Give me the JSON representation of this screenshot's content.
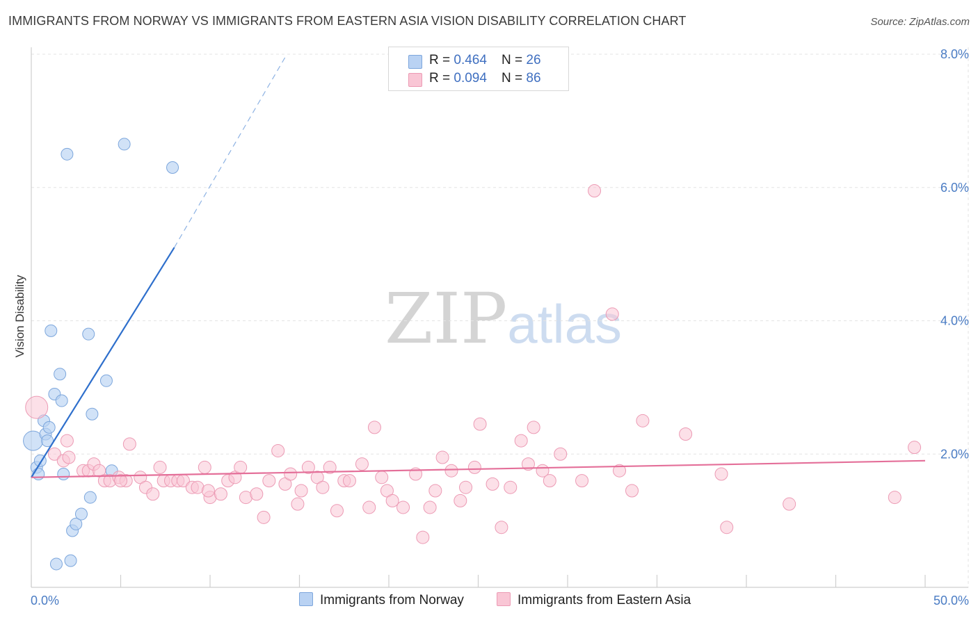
{
  "title": "IMMIGRANTS FROM NORWAY VS IMMIGRANTS FROM EASTERN ASIA VISION DISABILITY CORRELATION CHART",
  "source": "Source: ZipAtlas.com",
  "watermark": {
    "zip": "ZIP",
    "atlas": "atlas"
  },
  "legend": {
    "rows": [
      {
        "r_label": "R = ",
        "r_value": "0.464",
        "n_label": "N = ",
        "n_value": "26"
      },
      {
        "r_label": "R = ",
        "r_value": "0.094",
        "n_label": "N = ",
        "n_value": "86"
      }
    ]
  },
  "colors": {
    "norway_fill": "#b9d2f3",
    "norway_stroke": "#7ca6dc",
    "norway_line": "#2e6fcc",
    "easia_fill": "#f9c6d5",
    "easia_stroke": "#ec9ab4",
    "easia_line": "#e46f99",
    "grid": "#e3e3e3",
    "tick_text": "#4a7cc4"
  },
  "chart_data": {
    "type": "scatter",
    "title": "IMMIGRANTS FROM NORWAY VS IMMIGRANTS FROM EASTERN ASIA VISION DISABILITY CORRELATION CHART",
    "xlabel": "",
    "ylabel": "Vision Disability",
    "xlim": [
      0,
      50
    ],
    "ylim": [
      0,
      8.4
    ],
    "x_tick_labels": [
      {
        "value": 0,
        "label": "0.0%"
      },
      {
        "value": 50,
        "label": "50.0%"
      }
    ],
    "y_tick_labels": [
      {
        "value": 2,
        "label": "2.0%"
      },
      {
        "value": 4,
        "label": "4.0%"
      },
      {
        "value": 6,
        "label": "6.0%"
      },
      {
        "value": 8,
        "label": "8.0%"
      }
    ],
    "grid": "horizontal dashed",
    "legend_placement": "top-center",
    "series": [
      {
        "name": "Immigrants from Norway",
        "color": "#b9d2f3",
        "r": 0.464,
        "n": 26,
        "trend": {
          "x": [
            0,
            8
          ],
          "y": [
            1.65,
            5.1
          ],
          "dashed_extension": {
            "x": [
              8,
              14.3
            ],
            "y": [
              5.1,
              8.0
            ]
          }
        },
        "points": [
          [
            0.1,
            2.2
          ],
          [
            0.3,
            1.8
          ],
          [
            0.4,
            1.7
          ],
          [
            0.5,
            1.9
          ],
          [
            0.7,
            2.5
          ],
          [
            0.8,
            2.3
          ],
          [
            0.9,
            2.2
          ],
          [
            1.0,
            2.4
          ],
          [
            1.1,
            3.85
          ],
          [
            1.3,
            2.9
          ],
          [
            1.6,
            3.2
          ],
          [
            1.7,
            2.8
          ],
          [
            1.8,
            1.7
          ],
          [
            2.0,
            6.5
          ],
          [
            2.2,
            0.4
          ],
          [
            2.3,
            0.85
          ],
          [
            2.5,
            0.95
          ],
          [
            2.8,
            1.1
          ],
          [
            3.2,
            3.8
          ],
          [
            3.3,
            1.35
          ],
          [
            3.4,
            2.6
          ],
          [
            4.2,
            3.1
          ],
          [
            4.5,
            1.75
          ],
          [
            5.2,
            6.65
          ],
          [
            7.9,
            6.3
          ],
          [
            1.4,
            0.35
          ]
        ]
      },
      {
        "name": "Immigrants from Eastern Asia",
        "color": "#f9c6d5",
        "r": 0.094,
        "n": 86,
        "trend": {
          "x": [
            0,
            50
          ],
          "y": [
            1.65,
            1.9
          ]
        },
        "points": [
          [
            0.3,
            2.7
          ],
          [
            1.3,
            2.0
          ],
          [
            1.8,
            1.9
          ],
          [
            2.0,
            2.2
          ],
          [
            2.1,
            1.95
          ],
          [
            2.9,
            1.75
          ],
          [
            3.2,
            1.75
          ],
          [
            3.5,
            1.85
          ],
          [
            3.8,
            1.75
          ],
          [
            4.1,
            1.6
          ],
          [
            4.4,
            1.6
          ],
          [
            4.9,
            1.65
          ],
          [
            5.3,
            1.6
          ],
          [
            5.5,
            2.15
          ],
          [
            6.1,
            1.65
          ],
          [
            6.4,
            1.5
          ],
          [
            6.8,
            1.4
          ],
          [
            7.2,
            1.8
          ],
          [
            7.4,
            1.6
          ],
          [
            7.8,
            1.6
          ],
          [
            8.2,
            1.6
          ],
          [
            8.5,
            1.6
          ],
          [
            9.0,
            1.5
          ],
          [
            9.3,
            1.5
          ],
          [
            9.7,
            1.8
          ],
          [
            10.0,
            1.35
          ],
          [
            10.6,
            1.4
          ],
          [
            11.0,
            1.6
          ],
          [
            11.4,
            1.65
          ],
          [
            11.7,
            1.8
          ],
          [
            12.0,
            1.35
          ],
          [
            12.6,
            1.4
          ],
          [
            13.0,
            1.05
          ],
          [
            13.3,
            1.6
          ],
          [
            13.8,
            2.05
          ],
          [
            14.2,
            1.55
          ],
          [
            14.9,
            1.25
          ],
          [
            15.1,
            1.45
          ],
          [
            15.5,
            1.8
          ],
          [
            16.0,
            1.65
          ],
          [
            16.3,
            1.5
          ],
          [
            16.7,
            1.8
          ],
          [
            17.1,
            1.15
          ],
          [
            17.5,
            1.6
          ],
          [
            17.8,
            1.6
          ],
          [
            18.5,
            1.85
          ],
          [
            18.9,
            1.2
          ],
          [
            19.2,
            2.4
          ],
          [
            19.6,
            1.65
          ],
          [
            19.9,
            1.45
          ],
          [
            20.2,
            1.3
          ],
          [
            20.8,
            1.2
          ],
          [
            21.5,
            1.7
          ],
          [
            21.9,
            0.75
          ],
          [
            22.3,
            1.2
          ],
          [
            22.6,
            1.45
          ],
          [
            23.0,
            1.95
          ],
          [
            23.5,
            1.75
          ],
          [
            24.3,
            1.5
          ],
          [
            24.8,
            1.8
          ],
          [
            25.1,
            2.45
          ],
          [
            25.8,
            1.55
          ],
          [
            26.3,
            0.9
          ],
          [
            26.8,
            1.5
          ],
          [
            27.4,
            2.2
          ],
          [
            27.8,
            1.85
          ],
          [
            28.1,
            2.4
          ],
          [
            28.6,
            1.75
          ],
          [
            29.0,
            1.6
          ],
          [
            29.6,
            2.0
          ],
          [
            30.8,
            1.6
          ],
          [
            31.5,
            5.95
          ],
          [
            32.5,
            4.1
          ],
          [
            32.9,
            1.75
          ],
          [
            33.6,
            1.45
          ],
          [
            34.2,
            2.5
          ],
          [
            36.6,
            2.3
          ],
          [
            38.6,
            1.7
          ],
          [
            38.9,
            0.9
          ],
          [
            42.4,
            1.25
          ],
          [
            48.3,
            1.35
          ],
          [
            49.4,
            2.1
          ],
          [
            5.0,
            1.6
          ],
          [
            9.9,
            1.45
          ],
          [
            14.5,
            1.7
          ],
          [
            24.0,
            1.3
          ]
        ]
      }
    ]
  },
  "bottom_legend": [
    {
      "label": "Immigrants from Norway"
    },
    {
      "label": "Immigrants from Eastern Asia"
    }
  ]
}
